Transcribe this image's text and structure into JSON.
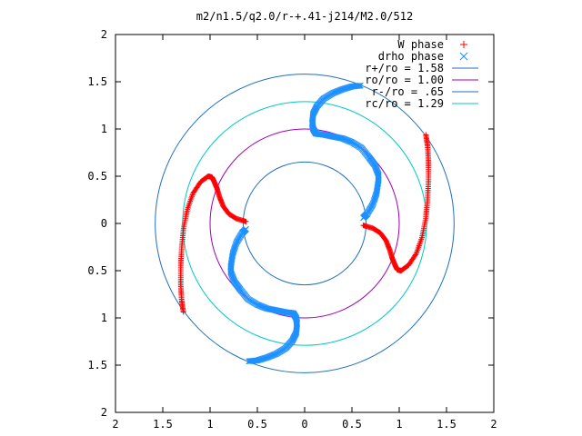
{
  "chart_data": {
    "type": "scatter",
    "title": "m2/n1.5/q2.0/r-+.41-j214/M2.0/512",
    "xlim": [
      -2,
      2
    ],
    "ylim": [
      -2,
      2
    ],
    "x_ticks": [
      -2,
      -1.5,
      -1,
      -0.5,
      0,
      0.5,
      1,
      1.5,
      2
    ],
    "y_ticks": [
      -2,
      -1.5,
      -1,
      -0.5,
      0,
      0.5,
      1,
      1.5,
      2
    ],
    "x_tick_labels": [
      "2",
      "1.5",
      "1",
      "0.5",
      "0",
      "0.5",
      "1",
      "1.5",
      "2"
    ],
    "y_tick_labels": [
      "2",
      "1.5",
      "1",
      "0.5",
      "0",
      "0.5",
      "1",
      "1.5",
      "2"
    ],
    "grid": false,
    "legend_position": "top-right",
    "circles": [
      {
        "label": "r+/ro = 1.58",
        "radius": 1.58,
        "color": "#1f6fbf"
      },
      {
        "label": "ro/ro = 1.00",
        "radius": 1.0,
        "color": "#a000b8"
      },
      {
        "label": "r-/ro = .65",
        "radius": 0.65,
        "color": "#1f6fbf"
      },
      {
        "label": "rc/ro = 1.29",
        "radius": 1.29,
        "color": "#00c8c8"
      }
    ],
    "series": [
      {
        "name": "W phase",
        "marker": "plus",
        "color": "#ff0000",
        "x": [
          0.62,
          0.72,
          0.8,
          0.86,
          0.9,
          0.93,
          0.96,
          0.98,
          1.02,
          1.1,
          1.18,
          1.24,
          1.28,
          1.3,
          1.31,
          1.31,
          1.3,
          1.28,
          -0.62,
          -0.72,
          -0.8,
          -0.86,
          -0.9,
          -0.93,
          -0.96,
          -0.98,
          -1.02,
          -1.1,
          -1.18,
          -1.24,
          -1.28,
          -1.3,
          -1.31,
          -1.31,
          -1.3,
          -1.28
        ],
        "y": [
          -0.02,
          -0.05,
          -0.1,
          -0.18,
          -0.28,
          -0.38,
          -0.45,
          -0.49,
          -0.5,
          -0.44,
          -0.32,
          -0.15,
          0.05,
          0.25,
          0.45,
          0.65,
          0.82,
          0.95,
          0.02,
          0.05,
          0.1,
          0.18,
          0.28,
          0.38,
          0.45,
          0.49,
          0.5,
          0.44,
          0.32,
          0.15,
          -0.05,
          -0.25,
          -0.45,
          -0.65,
          -0.82,
          -0.95
        ]
      },
      {
        "name": "drho phase",
        "marker": "cross",
        "color": "#1e90ff",
        "x": [
          0.62,
          0.66,
          0.72,
          0.76,
          0.78,
          0.78,
          0.74,
          0.68,
          0.6,
          0.5,
          0.4,
          0.3,
          0.2,
          0.12,
          0.09,
          0.08,
          0.09,
          0.13,
          0.2,
          0.3,
          0.4,
          0.5,
          0.6,
          -0.62,
          -0.66,
          -0.72,
          -0.76,
          -0.78,
          -0.78,
          -0.74,
          -0.68,
          -0.6,
          -0.5,
          -0.4,
          -0.3,
          -0.2,
          -0.12,
          -0.09,
          -0.08,
          -0.09,
          -0.13,
          -0.2,
          -0.3,
          -0.4,
          -0.5,
          -0.6
        ],
        "y": [
          0.06,
          0.1,
          0.2,
          0.32,
          0.45,
          0.52,
          0.62,
          0.7,
          0.8,
          0.86,
          0.9,
          0.92,
          0.94,
          0.95,
          1.0,
          1.06,
          1.16,
          1.24,
          1.32,
          1.38,
          1.42,
          1.45,
          1.46,
          -0.06,
          -0.1,
          -0.2,
          -0.32,
          -0.45,
          -0.52,
          -0.62,
          -0.7,
          -0.8,
          -0.86,
          -0.9,
          -0.92,
          -0.94,
          -0.95,
          -1.0,
          -1.06,
          -1.16,
          -1.24,
          -1.32,
          -1.38,
          -1.42,
          -1.45,
          -1.46
        ]
      }
    ]
  }
}
